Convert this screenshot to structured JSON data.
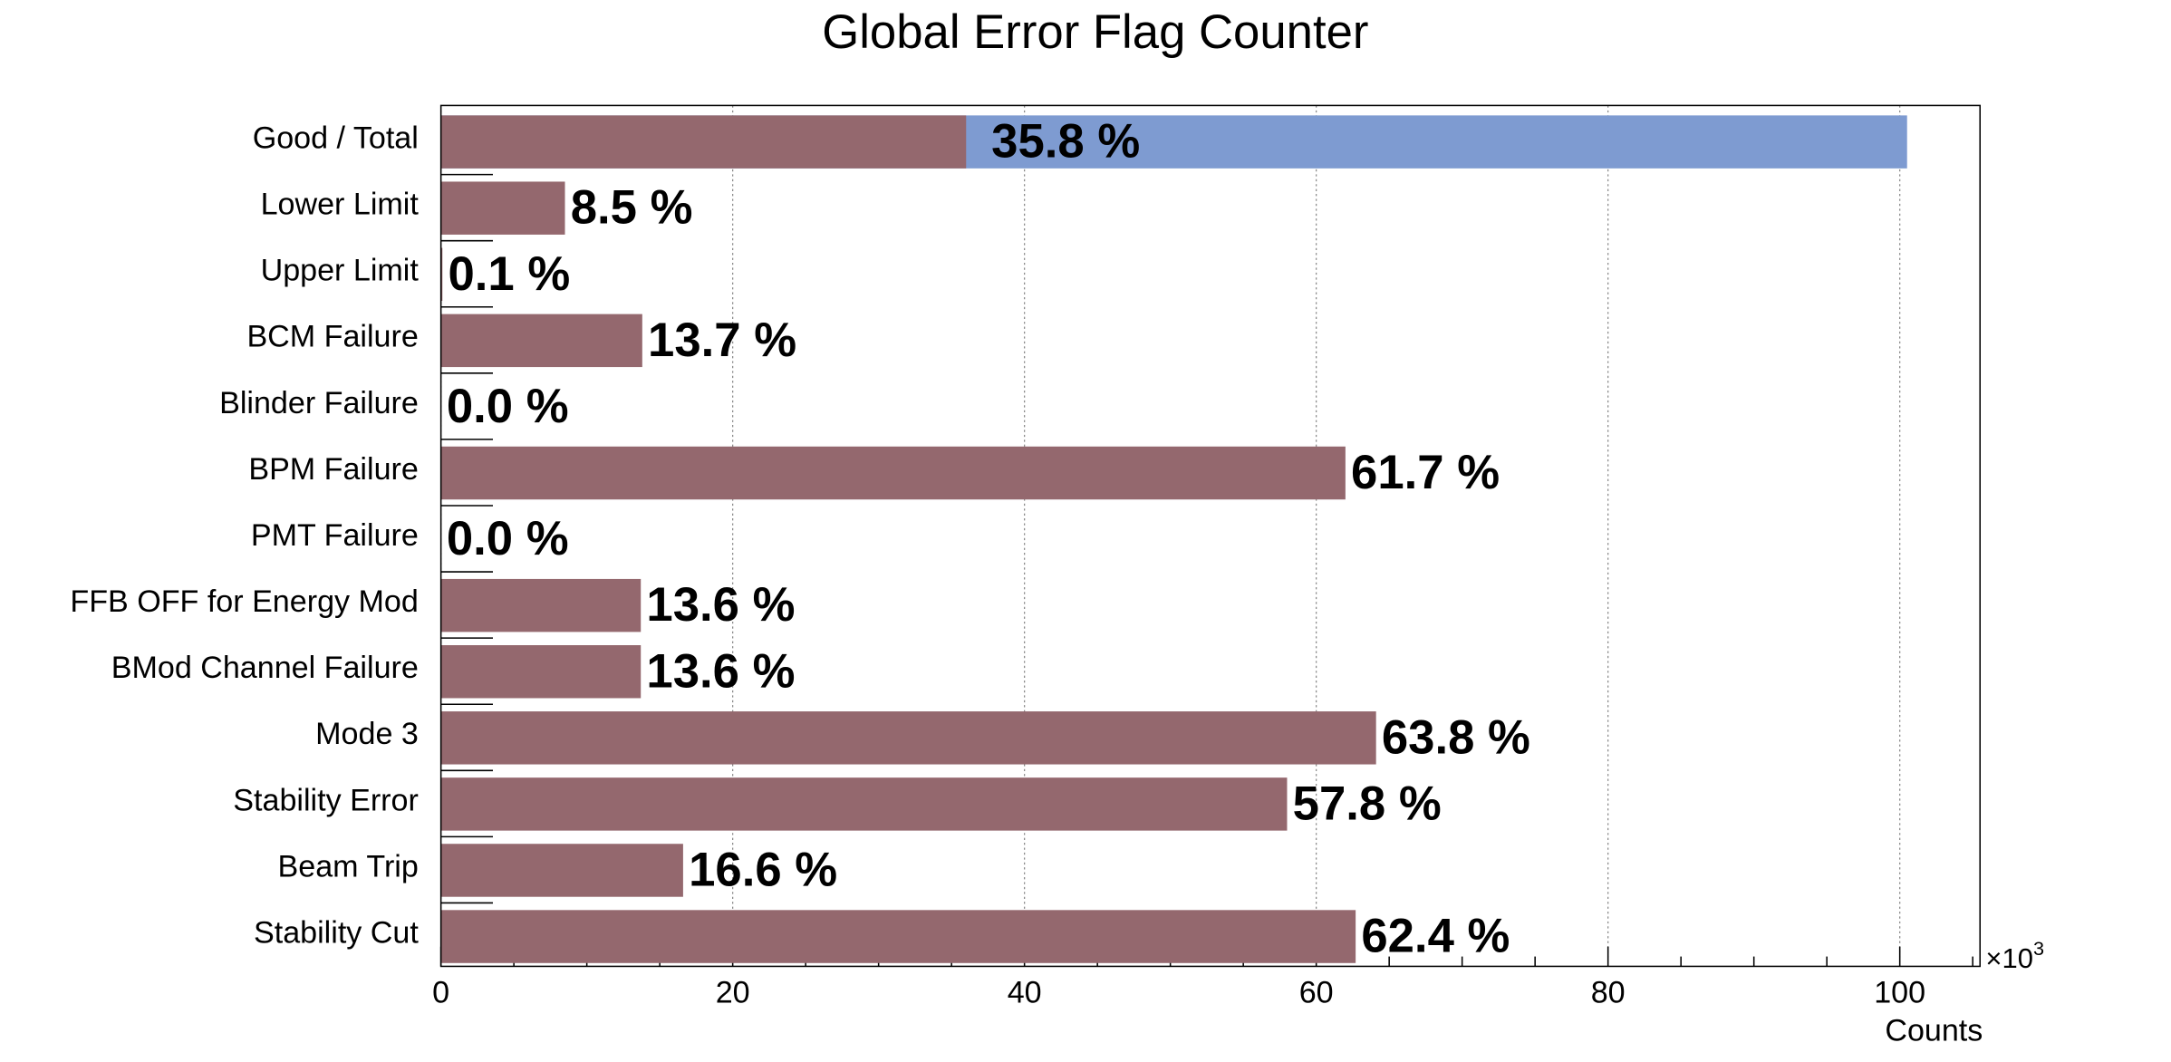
{
  "chart_data": {
    "type": "hbar",
    "title": "Global Error Flag Counter",
    "categories": [
      "Good / Total",
      "Lower Limit",
      "Upper Limit",
      "BCM Failure",
      "Blinder Failure",
      "BPM Failure",
      "PMT Failure",
      "FFB OFF for Energy Mod",
      "BMod Channel Failure",
      "Mode 3",
      "Stability Error",
      "Beam Trip",
      "Stability Cut"
    ],
    "values": [
      36.0,
      8.5,
      0.1,
      13.8,
      0,
      62.0,
      0,
      13.7,
      13.7,
      64.1,
      58.0,
      16.6,
      62.7
    ],
    "percent_labels": [
      "35.8 %",
      "8.5 %",
      "0.1 %",
      "13.7 %",
      "0.0 %",
      "61.7 %",
      "0.0 %",
      "13.6 %",
      "13.6 %",
      "63.8 %",
      "57.8 %",
      "16.6 %",
      "62.4 %"
    ],
    "color": "#94686e",
    "total_values": [
      100.5,
      null,
      null,
      null,
      null,
      null,
      null,
      null,
      null,
      null,
      null,
      null,
      null
    ],
    "total_color": "#7e9bd1",
    "xlim": [
      0,
      105.5
    ],
    "xticks": [
      0,
      20,
      40,
      60,
      80,
      100
    ],
    "xminorticks": [
      5,
      10,
      15,
      25,
      30,
      35,
      45,
      50,
      55,
      65,
      70,
      75,
      85,
      90,
      95,
      105
    ],
    "grid": true,
    "x_label": "Counts",
    "x_multiplier": "×10",
    "x_multiplier_exp": "3"
  }
}
